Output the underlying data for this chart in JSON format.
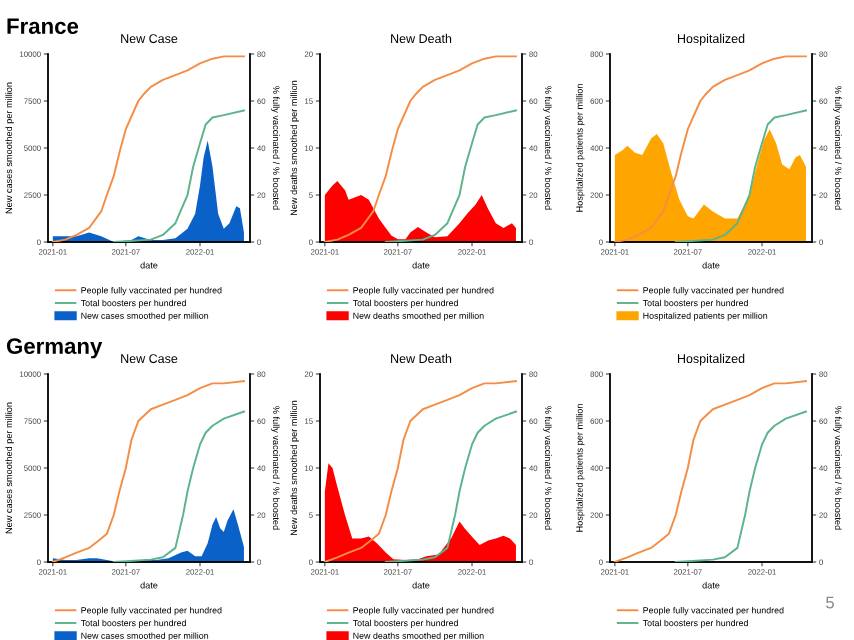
{
  "chart_data": [
    {
      "type": "area",
      "title": "New Case",
      "xlabel": "date",
      "ylabel": "New cases smoothed per million",
      "y2label": "% fully vaccinated / % boosted",
      "annotations": [
        "France"
      ],
      "legend": "bottom",
      "xlim": [
        "2020-12-20",
        "2022-05-05"
      ],
      "xticks": [
        "2021-01",
        "2021-07",
        "2022-01"
      ],
      "ylim": [
        0,
        10000
      ],
      "yticks": [
        0,
        2500,
        5000,
        7500,
        10000
      ],
      "y2lim": [
        0,
        80
      ],
      "y2ticks": [
        0,
        20,
        40,
        60,
        80
      ],
      "series": [
        {
          "name": "New cases smoothed per million",
          "color": "#0a62c9",
          "x": [
            "2021-01-01",
            "2021-02-01",
            "2021-03-01",
            "2021-04-01",
            "2021-05-01",
            "2021-06-01",
            "2021-07-15",
            "2021-08-01",
            "2021-09-01",
            "2021-10-01",
            "2021-11-01",
            "2021-12-01",
            "2021-12-20",
            "2022-01-01",
            "2022-01-10",
            "2022-01-20",
            "2022-02-01",
            "2022-02-15",
            "2022-03-01",
            "2022-03-15",
            "2022-04-01",
            "2022-04-10",
            "2022-04-20"
          ],
          "values": [
            300,
            300,
            300,
            500,
            300,
            0,
            100,
            300,
            100,
            100,
            200,
            700,
            1500,
            3000,
            4500,
            5400,
            4000,
            1500,
            700,
            1000,
            1900,
            1800,
            500
          ]
        },
        {
          "name": "People fully vaccinated per hundred",
          "type": "line",
          "axis": "y2",
          "color": "#f58d45",
          "x": [
            "2021-01-01",
            "2021-02-01",
            "2021-03-01",
            "2021-04-01",
            "2021-05-01",
            "2021-05-15",
            "2021-06-01",
            "2021-06-15",
            "2021-07-01",
            "2021-08-01",
            "2021-08-15",
            "2021-09-01",
            "2021-10-01",
            "2021-11-01",
            "2021-12-01",
            "2022-01-01",
            "2022-02-01",
            "2022-03-01",
            "2022-04-20"
          ],
          "values": [
            0,
            1,
            3,
            6,
            13,
            20,
            28,
            38,
            48,
            60,
            63,
            66,
            69,
            71,
            73,
            76,
            78,
            79,
            79
          ]
        },
        {
          "name": "Total boosters per hundred",
          "type": "line",
          "axis": "y2",
          "color": "#5cb38c",
          "x": [
            "2021-06-01",
            "2021-09-01",
            "2021-10-01",
            "2021-11-01",
            "2021-12-01",
            "2021-12-15",
            "2022-01-01",
            "2022-01-15",
            "2022-02-01",
            "2022-03-01",
            "2022-04-20"
          ],
          "values": [
            0,
            1,
            3,
            8,
            20,
            32,
            42,
            50,
            53,
            54,
            56
          ]
        }
      ]
    },
    {
      "type": "area",
      "title": "New Death",
      "xlabel": "date",
      "ylabel": "New deaths smoothed per million",
      "y2label": "% fully vaccinated / % boosted",
      "legend": "bottom",
      "xlim": [
        "2020-12-20",
        "2022-05-05"
      ],
      "xticks": [
        "2021-01",
        "2021-07",
        "2022-01"
      ],
      "ylim": [
        0,
        20
      ],
      "yticks": [
        0,
        5,
        10,
        15,
        20
      ],
      "y2lim": [
        0,
        80
      ],
      "y2ticks": [
        0,
        20,
        40,
        60,
        80
      ],
      "series": [
        {
          "name": "New deaths smoothed per million",
          "color": "#ff0000",
          "x": [
            "2021-01-01",
            "2021-01-20",
            "2021-02-01",
            "2021-02-20",
            "2021-03-01",
            "2021-04-01",
            "2021-04-20",
            "2021-05-15",
            "2021-06-01",
            "2021-06-15",
            "2021-07-01",
            "2021-07-20",
            "2021-08-01",
            "2021-08-20",
            "2021-09-10",
            "2021-10-01",
            "2021-11-01",
            "2021-12-01",
            "2021-12-20",
            "2022-01-10",
            "2022-01-25",
            "2022-02-10",
            "2022-03-01",
            "2022-03-20",
            "2022-04-10",
            "2022-04-20"
          ],
          "values": [
            5,
            6,
            6.5,
            5.5,
            4.5,
            5,
            4.5,
            2.5,
            1.5,
            0.7,
            0.3,
            0.3,
            1,
            1.6,
            1,
            0.5,
            0.6,
            2,
            3,
            4,
            5,
            3.5,
            2,
            1.5,
            2,
            1.5
          ]
        },
        {
          "name": "People fully vaccinated per hundred",
          "type": "line",
          "axis": "y2",
          "color": "#f58d45",
          "x": [
            "2021-01-01",
            "2021-02-01",
            "2021-03-01",
            "2021-04-01",
            "2021-05-01",
            "2021-05-15",
            "2021-06-01",
            "2021-06-15",
            "2021-07-01",
            "2021-08-01",
            "2021-08-15",
            "2021-09-01",
            "2021-10-01",
            "2021-11-01",
            "2021-12-01",
            "2022-01-01",
            "2022-02-01",
            "2022-03-01",
            "2022-04-20"
          ],
          "values": [
            0,
            1,
            3,
            6,
            13,
            20,
            28,
            38,
            48,
            60,
            63,
            66,
            69,
            71,
            73,
            76,
            78,
            79,
            79
          ]
        },
        {
          "name": "Total boosters per hundred",
          "type": "line",
          "axis": "y2",
          "color": "#5cb38c",
          "x": [
            "2021-06-01",
            "2021-09-01",
            "2021-10-01",
            "2021-11-01",
            "2021-12-01",
            "2021-12-15",
            "2022-01-01",
            "2022-01-15",
            "2022-02-01",
            "2022-03-01",
            "2022-04-20"
          ],
          "values": [
            0,
            1,
            3,
            8,
            20,
            32,
            42,
            50,
            53,
            54,
            56
          ]
        }
      ]
    },
    {
      "type": "area",
      "title": "Hospitalized",
      "xlabel": "date",
      "ylabel": "Hospitalized patients per million",
      "y2label": "% fully vaccinated / % boosted",
      "legend": "bottom",
      "xlim": [
        "2020-12-20",
        "2022-05-05"
      ],
      "xticks": [
        "2021-01",
        "2021-07",
        "2022-01"
      ],
      "ylim": [
        0,
        800
      ],
      "yticks": [
        0,
        200,
        400,
        600,
        800
      ],
      "y2lim": [
        0,
        80
      ],
      "y2ticks": [
        0,
        20,
        40,
        60,
        80
      ],
      "series": [
        {
          "name": "Hospitalized patients per million",
          "color": "#ffa500",
          "x": [
            "2021-01-01",
            "2021-01-20",
            "2021-02-01",
            "2021-02-20",
            "2021-03-10",
            "2021-04-01",
            "2021-04-15",
            "2021-05-01",
            "2021-05-20",
            "2021-06-10",
            "2021-07-01",
            "2021-07-15",
            "2021-08-10",
            "2021-09-01",
            "2021-10-01",
            "2021-11-01",
            "2021-12-01",
            "2021-12-20",
            "2022-01-05",
            "2022-01-20",
            "2022-02-05",
            "2022-02-20",
            "2022-03-10",
            "2022-03-25",
            "2022-04-05",
            "2022-04-20"
          ],
          "values": [
            370,
            390,
            410,
            380,
            370,
            440,
            460,
            420,
            300,
            180,
            110,
            100,
            160,
            130,
            100,
            100,
            200,
            330,
            430,
            480,
            420,
            330,
            310,
            360,
            370,
            320
          ]
        },
        {
          "name": "People fully vaccinated per hundred",
          "type": "line",
          "axis": "y2",
          "color": "#f58d45",
          "x": [
            "2021-01-01",
            "2021-02-01",
            "2021-03-01",
            "2021-04-01",
            "2021-05-01",
            "2021-05-15",
            "2021-06-01",
            "2021-06-15",
            "2021-07-01",
            "2021-08-01",
            "2021-08-15",
            "2021-09-01",
            "2021-10-01",
            "2021-11-01",
            "2021-12-01",
            "2022-01-01",
            "2022-02-01",
            "2022-03-01",
            "2022-04-20"
          ],
          "values": [
            0,
            1,
            3,
            6,
            13,
            20,
            28,
            38,
            48,
            60,
            63,
            66,
            69,
            71,
            73,
            76,
            78,
            79,
            79
          ]
        },
        {
          "name": "Total boosters per hundred",
          "type": "line",
          "axis": "y2",
          "color": "#5cb38c",
          "x": [
            "2021-06-01",
            "2021-09-01",
            "2021-10-01",
            "2021-11-01",
            "2021-12-01",
            "2021-12-15",
            "2022-01-01",
            "2022-01-15",
            "2022-02-01",
            "2022-03-01",
            "2022-04-20"
          ],
          "values": [
            0,
            1,
            3,
            8,
            20,
            32,
            42,
            50,
            53,
            54,
            56
          ]
        }
      ]
    },
    {
      "type": "area",
      "title": "New Case",
      "xlabel": "date",
      "ylabel": "New cases smoothed per million",
      "y2label": "% fully vaccinated / % boosted",
      "annotations": [
        "Germany"
      ],
      "legend": "bottom",
      "xlim": [
        "2020-12-20",
        "2022-05-05"
      ],
      "xticks": [
        "2021-01",
        "2021-07",
        "2022-01"
      ],
      "ylim": [
        0,
        10000
      ],
      "yticks": [
        0,
        2500,
        5000,
        7500,
        10000
      ],
      "y2lim": [
        0,
        80
      ],
      "y2ticks": [
        0,
        20,
        40,
        60,
        80
      ],
      "series": [
        {
          "name": "New cases smoothed per million",
          "color": "#0a62c9",
          "x": [
            "2021-01-01",
            "2021-02-01",
            "2021-03-01",
            "2021-04-01",
            "2021-04-20",
            "2021-05-15",
            "2021-06-10",
            "2021-07-15",
            "2021-08-15",
            "2021-09-15",
            "2021-10-15",
            "2021-11-15",
            "2021-12-01",
            "2021-12-20",
            "2022-01-05",
            "2022-01-20",
            "2022-02-01",
            "2022-02-10",
            "2022-02-20",
            "2022-03-01",
            "2022-03-10",
            "2022-03-25",
            "2022-04-05",
            "2022-04-15",
            "2022-04-20"
          ],
          "values": [
            200,
            100,
            100,
            200,
            200,
            100,
            0,
            0,
            100,
            100,
            200,
            500,
            600,
            300,
            300,
            1000,
            2000,
            2400,
            1800,
            1600,
            2200,
            2800,
            2000,
            1200,
            800
          ]
        },
        {
          "name": "People fully vaccinated per hundred",
          "type": "line",
          "axis": "y2",
          "color": "#f58d45",
          "x": [
            "2021-01-01",
            "2021-02-01",
            "2021-03-01",
            "2021-04-01",
            "2021-05-01",
            "2021-05-15",
            "2021-06-01",
            "2021-06-15",
            "2021-07-01",
            "2021-07-15",
            "2021-08-01",
            "2021-09-01",
            "2021-10-01",
            "2021-11-01",
            "2021-12-01",
            "2022-01-01",
            "2022-02-01",
            "2022-03-01",
            "2022-04-20"
          ],
          "values": [
            0,
            2,
            4,
            6,
            10,
            12,
            20,
            30,
            40,
            52,
            60,
            65,
            67,
            69,
            71,
            74,
            76,
            76,
            77
          ]
        },
        {
          "name": "Total boosters per hundred",
          "type": "line",
          "axis": "y2",
          "color": "#5cb38c",
          "x": [
            "2021-06-01",
            "2021-09-01",
            "2021-10-01",
            "2021-11-01",
            "2021-11-20",
            "2021-12-01",
            "2021-12-15",
            "2022-01-01",
            "2022-01-15",
            "2022-02-01",
            "2022-03-01",
            "2022-04-20"
          ],
          "values": [
            0,
            1,
            2,
            6,
            20,
            30,
            40,
            50,
            55,
            58,
            61,
            64
          ]
        }
      ]
    },
    {
      "type": "area",
      "title": "New Death",
      "xlabel": "date",
      "ylabel": "New deaths smoothed per million",
      "y2label": "% fully vaccinated / % boosted",
      "legend": "bottom",
      "xlim": [
        "2020-12-20",
        "2022-05-05"
      ],
      "xticks": [
        "2021-01",
        "2021-07",
        "2022-01"
      ],
      "ylim": [
        0,
        20
      ],
      "yticks": [
        0,
        5,
        10,
        15,
        20
      ],
      "y2lim": [
        0,
        80
      ],
      "y2ticks": [
        0,
        20,
        40,
        60,
        80
      ],
      "series": [
        {
          "name": "New deaths smoothed per million",
          "color": "#ff0000",
          "x": [
            "2021-01-01",
            "2021-01-10",
            "2021-01-20",
            "2021-02-01",
            "2021-02-20",
            "2021-03-10",
            "2021-04-01",
            "2021-04-20",
            "2021-05-10",
            "2021-06-01",
            "2021-06-20",
            "2021-07-20",
            "2021-08-20",
            "2021-09-10",
            "2021-10-10",
            "2021-11-10",
            "2021-12-01",
            "2021-12-15",
            "2022-01-05",
            "2022-01-20",
            "2022-02-10",
            "2022-03-01",
            "2022-03-20",
            "2022-04-05",
            "2022-04-20"
          ],
          "values": [
            7.5,
            10.5,
            10,
            8,
            5,
            2.5,
            2.5,
            2.7,
            2,
            1,
            0.3,
            0.2,
            0.3,
            0.6,
            0.8,
            2.5,
            4.3,
            3.5,
            2.5,
            1.8,
            2.3,
            2.5,
            2.8,
            2.5,
            1.8
          ]
        },
        {
          "name": "People fully vaccinated per hundred",
          "type": "line",
          "axis": "y2",
          "color": "#f58d45",
          "x": [
            "2021-01-01",
            "2021-02-01",
            "2021-03-01",
            "2021-04-01",
            "2021-05-01",
            "2021-05-15",
            "2021-06-01",
            "2021-06-15",
            "2021-07-01",
            "2021-07-15",
            "2021-08-01",
            "2021-09-01",
            "2021-10-01",
            "2021-11-01",
            "2021-12-01",
            "2022-01-01",
            "2022-02-01",
            "2022-03-01",
            "2022-04-20"
          ],
          "values": [
            0,
            2,
            4,
            6,
            10,
            12,
            20,
            30,
            40,
            52,
            60,
            65,
            67,
            69,
            71,
            74,
            76,
            76,
            77
          ]
        },
        {
          "name": "Total boosters per hundred",
          "type": "line",
          "axis": "y2",
          "color": "#5cb38c",
          "x": [
            "2021-06-01",
            "2021-09-01",
            "2021-10-01",
            "2021-11-01",
            "2021-11-20",
            "2021-12-01",
            "2021-12-15",
            "2022-01-01",
            "2022-01-15",
            "2022-02-01",
            "2022-03-01",
            "2022-04-20"
          ],
          "values": [
            0,
            1,
            2,
            6,
            20,
            30,
            40,
            50,
            55,
            58,
            61,
            64
          ]
        }
      ]
    },
    {
      "type": "line",
      "title": "Hospitalized",
      "xlabel": "date",
      "ylabel": "Hospitalized patients per million",
      "y2label": "% fully vaccinated / % boosted",
      "annotations": [
        "5"
      ],
      "legend": "bottom",
      "xlim": [
        "2020-12-20",
        "2022-05-05"
      ],
      "xticks": [
        "2021-01",
        "2021-07",
        "2022-01"
      ],
      "ylim": [
        0,
        800
      ],
      "yticks": [
        0,
        200,
        400,
        600,
        800
      ],
      "y2lim": [
        0,
        80
      ],
      "y2ticks": [
        0,
        20,
        40,
        60,
        80
      ],
      "series": [
        {
          "name": "People fully vaccinated per hundred",
          "axis": "y2",
          "color": "#f58d45",
          "x": [
            "2021-01-01",
            "2021-02-01",
            "2021-03-01",
            "2021-04-01",
            "2021-05-01",
            "2021-05-15",
            "2021-06-01",
            "2021-06-15",
            "2021-07-01",
            "2021-07-15",
            "2021-08-01",
            "2021-09-01",
            "2021-10-01",
            "2021-11-01",
            "2021-12-01",
            "2022-01-01",
            "2022-02-01",
            "2022-03-01",
            "2022-04-20"
          ],
          "values": [
            0,
            2,
            4,
            6,
            10,
            12,
            20,
            30,
            40,
            52,
            60,
            65,
            67,
            69,
            71,
            74,
            76,
            76,
            77
          ]
        },
        {
          "name": "Total boosters per hundred",
          "axis": "y2",
          "color": "#5cb38c",
          "x": [
            "2021-06-01",
            "2021-09-01",
            "2021-10-01",
            "2021-11-01",
            "2021-11-20",
            "2021-12-01",
            "2021-12-15",
            "2022-01-01",
            "2022-01-15",
            "2022-02-01",
            "2022-03-01",
            "2022-04-20"
          ],
          "values": [
            0,
            1,
            2,
            6,
            20,
            30,
            40,
            50,
            55,
            58,
            61,
            64
          ]
        }
      ]
    }
  ]
}
